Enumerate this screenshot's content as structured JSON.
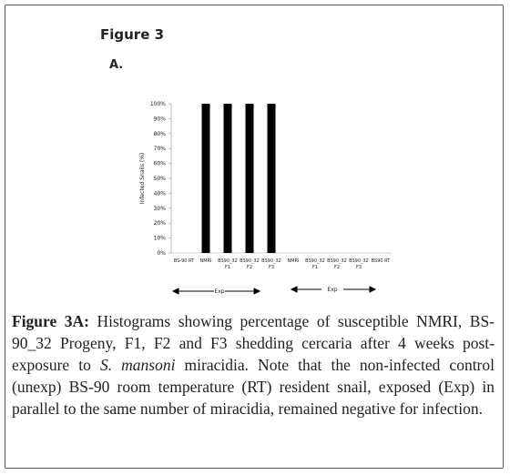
{
  "figure_label": "Figure 3",
  "panel_label": "A.",
  "chart_data": {
    "type": "bar",
    "ylabel": "Infected Snails (%)",
    "categories": [
      "BS-90 RT",
      "NMRI",
      [
        "BS90_32",
        "F1"
      ],
      [
        "BS90_32",
        "F2"
      ],
      [
        "BS90_32",
        "F3"
      ],
      "NMRI",
      [
        "BS90_32",
        "F1"
      ],
      [
        "BS90_32",
        "F2"
      ],
      [
        "BS90_32",
        "F3"
      ],
      "BS90 RT"
    ],
    "values": [
      0,
      100,
      100,
      100,
      100,
      0,
      0,
      0,
      0,
      0
    ],
    "color": "#000000",
    "ylim": [
      0,
      100
    ],
    "yticks": [
      {
        "value": 0,
        "label": "0%"
      },
      {
        "value": 10,
        "label": "10%"
      },
      {
        "value": 20,
        "label": "20%"
      },
      {
        "value": 30,
        "label": "30%"
      },
      {
        "value": 40,
        "label": "40%"
      },
      {
        "value": 50,
        "label": "50%"
      },
      {
        "value": 60,
        "label": "60%"
      },
      {
        "value": 70,
        "label": "70%"
      },
      {
        "value": 80,
        "label": "80%"
      },
      {
        "value": 90,
        "label": "90%"
      },
      {
        "value": 100,
        "label": "100%"
      }
    ],
    "group_labels": [
      "Exp",
      "Exp"
    ]
  },
  "caption": {
    "label": "Figure 3A:",
    "text_before": "Histograms showing percentage of susceptible NMRI, BS-90_32 Progeny, F1, F2 and F3 shedding cercaria after 4 weeks post-exposure to",
    "species": "S. mansoni",
    "text_after": "miracidia. Note that the non-infected control (unexp) BS-90 room temperature (RT) resident snail, exposed (Exp) in parallel to the same number of miracidia, remained negative for infection."
  }
}
